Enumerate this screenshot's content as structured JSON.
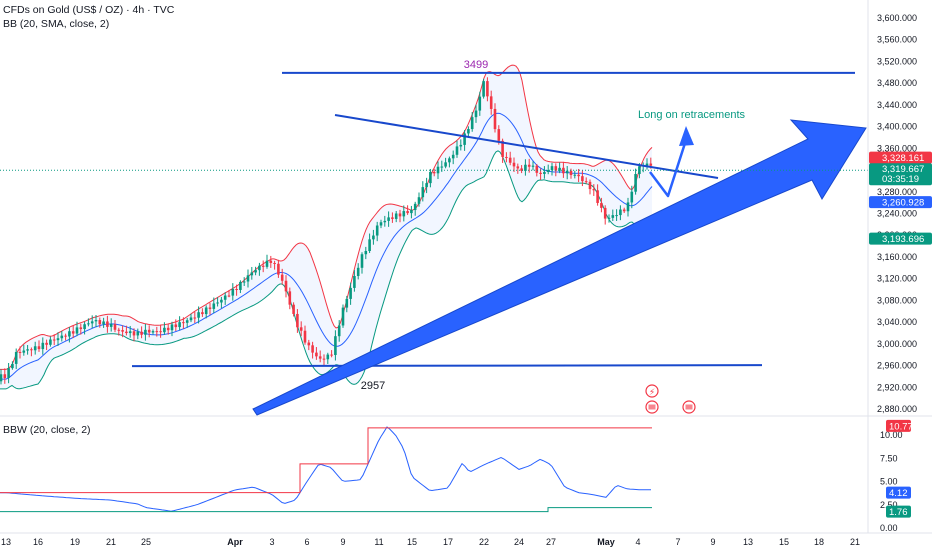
{
  "header": {
    "symbol_line": "CFDs on Gold (US$ / OZ) · 4h · TVC",
    "indicator_line": "BB (20, SMA, close, 2)",
    "sub_indicator": "BBW (20, close, 2)"
  },
  "chart_data": [
    {
      "type": "candlestick",
      "title": "CFDs on Gold (US$ / OZ) · 4h · TVC",
      "indicator": "BB (20, SMA, close, 2)",
      "y_ticks": [
        2880,
        2920,
        2960,
        3000,
        3040,
        3080,
        3120,
        3160,
        3200,
        3240,
        3280,
        3320,
        3360,
        3400,
        3440,
        3480,
        3520,
        3560,
        3600
      ],
      "y_tick_labels": [
        "2,880.000",
        "2,920.000",
        "2,960.000",
        "3,000.000",
        "3,040.000",
        "3,080.000",
        "3,120.000",
        "3,160.000",
        "3,200.000",
        "3,240.000",
        "3,280.000",
        "3,320.000",
        "3,360.000",
        "3,400.000",
        "3,440.000",
        "3,480.000",
        "3,520.000",
        "3,560.000",
        "3,600.000"
      ],
      "ylim": [
        2855,
        3625
      ],
      "x_tick_labels": [
        "13",
        "16",
        "19",
        "21",
        "25",
        "Apr",
        "3",
        "6",
        "9",
        "11",
        "15",
        "17",
        "22",
        "24",
        "27",
        "May",
        "4",
        "7",
        "9",
        "13",
        "15",
        "18",
        "21"
      ],
      "price_series": [
        [
          "Mar 13",
          2935
        ],
        [
          "Mar 14",
          2980
        ],
        [
          "Mar 16",
          2995
        ],
        [
          "Mar 17",
          3010
        ],
        [
          "Mar 19",
          3030
        ],
        [
          "Mar 20",
          3045
        ],
        [
          "Mar 21",
          3030
        ],
        [
          "Mar 22",
          3018
        ],
        [
          "Mar 24",
          3012
        ],
        [
          "Mar 25",
          3018
        ],
        [
          "Mar 26",
          3020
        ],
        [
          "Mar 28",
          3045
        ],
        [
          "Apr 1",
          3100
        ],
        [
          "Apr 2",
          3130
        ],
        [
          "Apr 3",
          3148
        ],
        [
          "Apr 4",
          3105
        ],
        [
          "Apr 5",
          3040
        ],
        [
          "Apr 6",
          3000
        ],
        [
          "Apr 7",
          2975
        ],
        [
          "Apr 8",
          2985
        ],
        [
          "Apr 9",
          3070
        ],
        [
          "Apr 10",
          3160
        ],
        [
          "Apr 11",
          3220
        ],
        [
          "Apr 13",
          3230
        ],
        [
          "Apr 15",
          3240
        ],
        [
          "Apr 16",
          3310
        ],
        [
          "Apr 17",
          3340
        ],
        [
          "Apr 19",
          3380
        ],
        [
          "Apr 21",
          3440
        ],
        [
          "Apr 22",
          3490
        ],
        [
          "Apr 23",
          3350
        ],
        [
          "Apr 24",
          3315
        ],
        [
          "Apr 25",
          3325
        ],
        [
          "Apr 26",
          3305
        ],
        [
          "Apr 27",
          3320
        ],
        [
          "Apr 28",
          3315
        ],
        [
          "Apr 29",
          3310
        ],
        [
          "Apr 30",
          3290
        ],
        [
          "May 1",
          3235
        ],
        [
          "May 2",
          3245
        ],
        [
          "May 3",
          3255
        ],
        [
          "May 4",
          3328
        ]
      ],
      "last_price": {
        "label": "3,319.667",
        "countdown": "03:35:19",
        "color": "#089981"
      },
      "price_tags": [
        {
          "label": "3,328.161",
          "color": "#f23645"
        },
        {
          "label": "3,260.928",
          "color": "#2962ff"
        },
        {
          "label": "3,193.696",
          "color": "#089981"
        }
      ],
      "annotations": {
        "high_label": "3499",
        "low_label": "2957",
        "text": "Long on retracements",
        "text_color": "#089981",
        "levels": [
          3499,
          2957
        ]
      },
      "colors": {
        "up": "#089981",
        "down": "#f23645",
        "bb_upper": "#f23645",
        "bb_basis": "#2962ff",
        "bb_lower": "#089981",
        "drawing": "#1848cc"
      }
    },
    {
      "type": "line",
      "title": "BBW (20, close, 2)",
      "y_ticks": [
        0.0,
        2.5,
        5.0,
        7.5,
        10.0
      ],
      "y_tick_labels": [
        "0.00",
        "2.50",
        "5.00",
        "7.50",
        "10.00"
      ],
      "ylim": [
        0,
        12
      ],
      "bbw_series": [
        [
          "Mar 13",
          3.8
        ],
        [
          "Mar 16",
          3.5
        ],
        [
          "Mar 19",
          3.2
        ],
        [
          "Mar 21",
          3.0
        ],
        [
          "Mar 24",
          2.6
        ],
        [
          "Mar 25",
          2.2
        ],
        [
          "Mar 27",
          1.8
        ],
        [
          "Mar 29",
          2.5
        ],
        [
          "Apr 1",
          4.1
        ],
        [
          "Apr 2",
          4.4
        ],
        [
          "Apr 3",
          3.6
        ],
        [
          "Apr 4",
          2.6
        ],
        [
          "Apr 5",
          3.0
        ],
        [
          "Apr 6",
          5.0
        ],
        [
          "Apr 7",
          6.9
        ],
        [
          "Apr 8",
          6.5
        ],
        [
          "Apr 9",
          5.0
        ],
        [
          "Apr 10",
          5.2
        ],
        [
          "Apr 11",
          9.5
        ],
        [
          "Apr 12",
          10.9
        ],
        [
          "Apr 13",
          10.0
        ],
        [
          "Apr 14",
          8.5
        ],
        [
          "Apr 15",
          5.5
        ],
        [
          "Apr 16",
          4.0
        ],
        [
          "Apr 17",
          4.3
        ],
        [
          "Apr 19",
          7.0
        ],
        [
          "Apr 20",
          6.0
        ],
        [
          "Apr 22",
          6.8
        ],
        [
          "Apr 23",
          7.6
        ],
        [
          "Apr 24",
          6.3
        ],
        [
          "Apr 25",
          6.7
        ],
        [
          "Apr 26",
          7.4
        ],
        [
          "Apr 27",
          6.8
        ],
        [
          "Apr 28",
          4.4
        ],
        [
          "Apr 29",
          3.8
        ],
        [
          "Apr 30",
          3.6
        ],
        [
          "May 1",
          3.3
        ],
        [
          "May 2",
          4.6
        ],
        [
          "May 3",
          4.2
        ],
        [
          "May 4",
          4.12
        ]
      ],
      "tags": [
        {
          "label": "10.77",
          "color": "#f23645"
        },
        {
          "label": "4.12",
          "color": "#2962ff"
        },
        {
          "label": "1.76",
          "color": "#089981"
        }
      ]
    }
  ]
}
